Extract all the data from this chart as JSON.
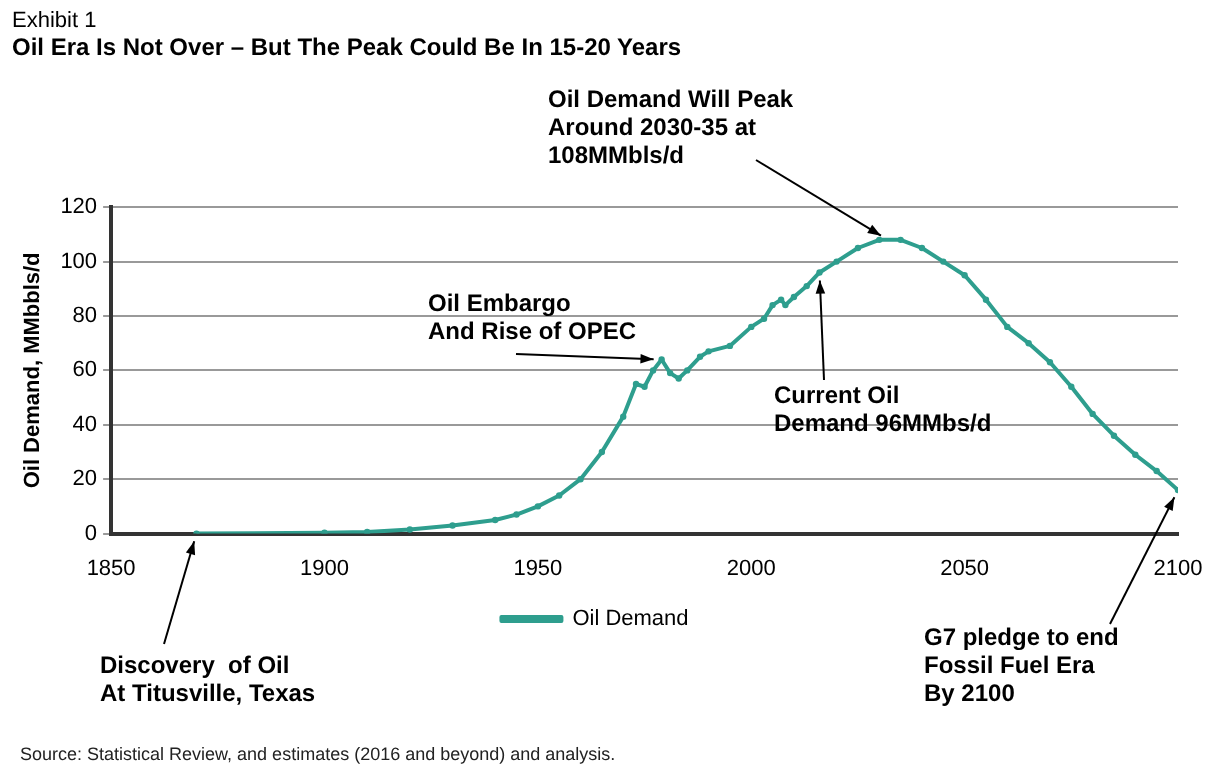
{
  "chart_data": {
    "type": "line",
    "title": "Exhibit 1",
    "subtitle": "Oil Era Is Not Over – But The Peak Could Be In 15-20 Years",
    "ylabel": "Oil Demand, MMbbls/d",
    "x": [
      1870,
      1900,
      1910,
      1920,
      1930,
      1940,
      1945,
      1950,
      1955,
      1960,
      1965,
      1970,
      1973,
      1975,
      1977,
      1979,
      1981,
      1983,
      1985,
      1988,
      1990,
      1995,
      2000,
      2003,
      2005,
      2007,
      2008,
      2010,
      2013,
      2016,
      2020,
      2025,
      2030,
      2035,
      2040,
      2045,
      2050,
      2055,
      2060,
      2065,
      2070,
      2075,
      2080,
      2085,
      2090,
      2095,
      2100
    ],
    "series": [
      {
        "name": "Oil Demand",
        "color": "#2e9e8e",
        "values": [
          0,
          0.3,
          0.6,
          1.5,
          3,
          5,
          7,
          10,
          14,
          20,
          30,
          43,
          55,
          54,
          60,
          64,
          59,
          57,
          60,
          65,
          67,
          69,
          76,
          79,
          84,
          86,
          84,
          87,
          91,
          96,
          100,
          105,
          108,
          108,
          105,
          100,
          95,
          86,
          76,
          70,
          63,
          54,
          44,
          36,
          29,
          23,
          16
        ]
      }
    ],
    "xlim": [
      1850,
      2100
    ],
    "xticks": [
      1850,
      1900,
      1950,
      2000,
      2050,
      2100
    ],
    "ylim": [
      0,
      120
    ],
    "yticks": [
      0,
      20,
      40,
      60,
      80,
      100,
      120
    ],
    "grid": "y",
    "legend": "bottom",
    "marker": "circle",
    "line_style": "solid",
    "annotations": [
      {
        "text": "Oil Demand Will Peak\nAround 2030-35 at\n108MMbls/d",
        "x": 2032,
        "y": 108
      },
      {
        "text": "Oil Embargo\nAnd Rise of OPEC",
        "x": 1979,
        "y": 64
      },
      {
        "text": "Current Oil\nDemand 96MMbs/d",
        "x": 2016,
        "y": 96
      },
      {
        "text": "Discovery  of Oil\nAt Titusville, Texas",
        "x": 1870,
        "y": 0
      },
      {
        "text": "G7 pledge to end\nFossil Fuel Era\nBy 2100",
        "x": 2100,
        "y": 16
      },
      "Source: Statistical Review, and estimates (2016 and beyond) and analysis."
    ]
  }
}
